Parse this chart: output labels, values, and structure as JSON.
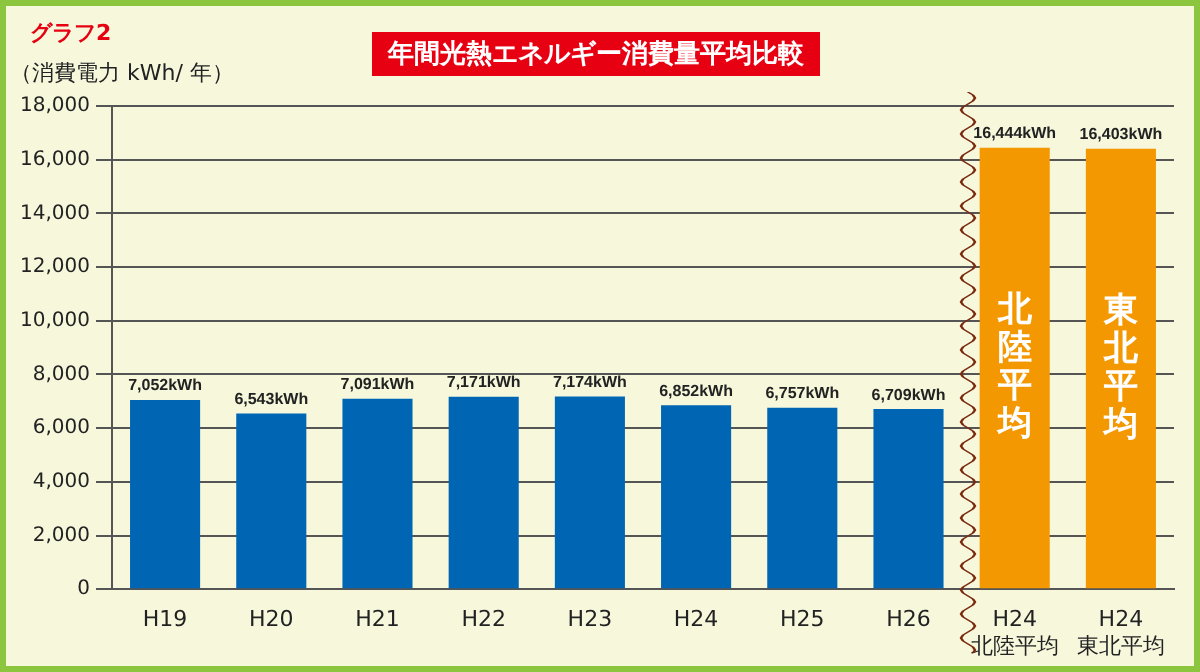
{
  "chart_data": {
    "type": "bar",
    "title": "年間光熱エネルギー消費量平均比較",
    "ylabel": "（消費電力 kWh/ 年）",
    "annotations": [
      "グラフ2",
      "北陸平均",
      "東北平均"
    ],
    "categories": [
      "H19",
      "H20",
      "H21",
      "H22",
      "H23",
      "H24",
      "H25",
      "H26",
      "H24 北陸平均",
      "H24 東北平均"
    ],
    "values": [
      7052,
      6543,
      7091,
      7171,
      7174,
      6852,
      6757,
      6709,
      16444,
      16403
    ],
    "colors": [
      "#0066b3",
      "#0066b3",
      "#0066b3",
      "#0066b3",
      "#0066b3",
      "#0066b3",
      "#0066b3",
      "#0066b3",
      "#f39800",
      "#f39800"
    ],
    "value_labels": [
      "7,052kWh",
      "6,543kWh",
      "7,091kWh",
      "7,171kWh",
      "7,174kWh",
      "6,852kWh",
      "6,757kWh",
      "6,709kWh",
      "16,444kWh",
      "16,403kWh"
    ],
    "ylim": [
      0,
      18000
    ],
    "yticks": [
      0,
      {
        "value": 2000,
        "label": "2,000"
      },
      {
        "value": 4000,
        "label": "4,000"
      },
      {
        "value": 6000,
        "label": "6,000"
      },
      {
        "value": 8000,
        "label": "8,000"
      },
      {
        "value": 10000,
        "label": "10,000"
      },
      {
        "value": 12000,
        "label": "12,000"
      },
      {
        "value": 14000,
        "label": "14,000"
      },
      {
        "value": 16000,
        "label": "16,000"
      },
      {
        "value": 18000,
        "label": "18,000"
      }
    ],
    "grid": "y"
  }
}
